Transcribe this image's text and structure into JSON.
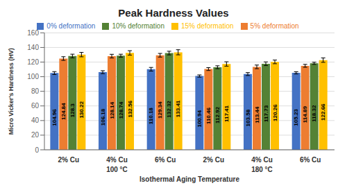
{
  "chart_data": {
    "type": "bar",
    "title": "Peak Hardness Values",
    "xlabel": "Isothermal Aging Temperature",
    "ylabel": "Micro Vicker's Hardness (HV)",
    "categories": [
      "2% Cu",
      "4% Cu",
      "6% Cu",
      "2% Cu",
      "4% Cu",
      "6% Cu"
    ],
    "annotations": [
      "100 °C",
      "180 °C"
    ],
    "series": [
      {
        "name": "0% deformation",
        "color": "#4472C4",
        "values": [
          104.96,
          106.18,
          110.18,
          100.94,
          103.58,
          105.23
        ],
        "errors": [
          2.0,
          2.0,
          2.5,
          1.5,
          2.0,
          1.5
        ]
      },
      {
        "name": "5% deformation",
        "color": "#ED7D31",
        "values": [
          124.84,
          128.14,
          129.34,
          110.46,
          113.44,
          114.89
        ],
        "errors": [
          2.5,
          2.5,
          2.5,
          2.0,
          2.5,
          2.0
        ]
      },
      {
        "name": "10% deformation",
        "color": "#548235",
        "values": [
          128.3,
          128.74,
          132.32,
          112.92,
          117.73,
          118.32
        ],
        "errors": [
          2.5,
          2.0,
          2.5,
          2.0,
          2.5,
          1.5
        ]
      },
      {
        "name": "15% deformation",
        "color": "#FFC000",
        "values": [
          130.22,
          132.56,
          133.41,
          117.41,
          120.26,
          122.66
        ],
        "errors": [
          3.0,
          3.0,
          3.5,
          3.0,
          2.5,
          3.0
        ]
      }
    ],
    "ylim": [
      0,
      160
    ],
    "yticks": [
      0,
      20,
      40,
      60,
      80,
      100,
      120,
      140,
      160
    ],
    "grid": true,
    "legend": "top",
    "data_labels": true
  }
}
